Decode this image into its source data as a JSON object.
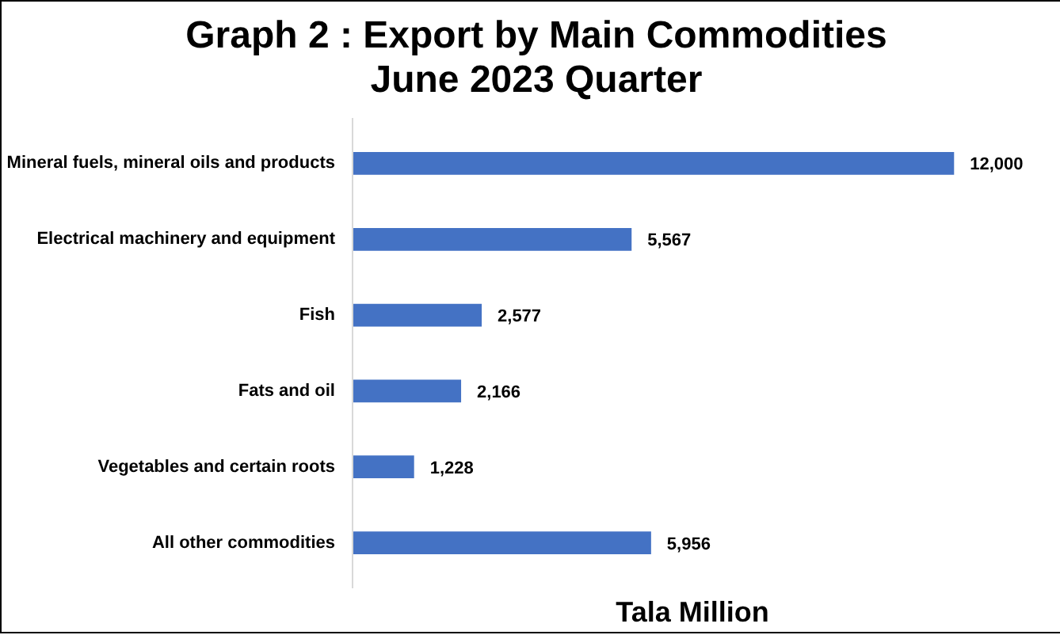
{
  "chart_data": {
    "type": "bar",
    "orientation": "horizontal",
    "title": "Graph 2 : Export by Main Commodities\nJune 2023 Quarter",
    "xlabel": "Tala Million",
    "categories": [
      "Mineral fuels, mineral oils and products",
      "Electrical machinery and equipment",
      "Fish",
      "Fats and oil",
      "Vegetables and certain roots",
      "All other commodities"
    ],
    "values": [
      12000,
      5567,
      2577,
      2166,
      1228,
      5956
    ],
    "value_labels": [
      "12,000",
      "5,567",
      "2,577",
      "2,166",
      "1,228",
      "5,956"
    ],
    "color": "#4472c4",
    "grid": false
  }
}
